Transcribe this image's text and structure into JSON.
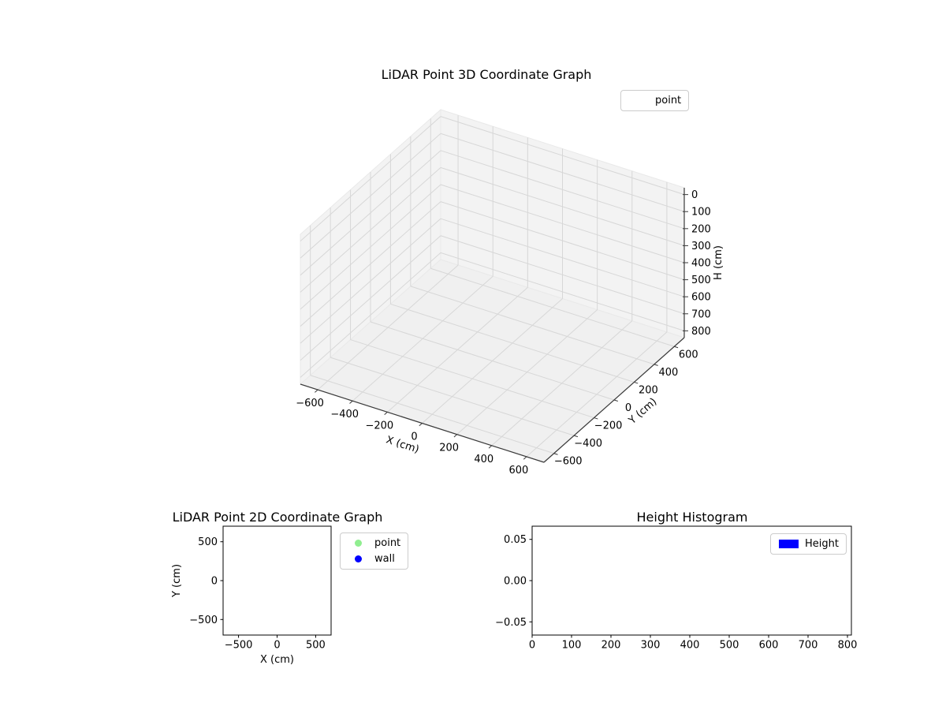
{
  "figure": {
    "background": "#ffffff",
    "text_color": "#000000",
    "grid_color": "#d7d7d7",
    "pane_color": "#f3f3f3"
  },
  "chart_data": [
    {
      "id": "plot3d",
      "type": "scatter3d",
      "title": "LiDAR Point 3D Coordinate Graph",
      "xlabel": "X (cm)",
      "ylabel": "Y (cm)",
      "zlabel": "H (cm)",
      "xlim": [
        -700,
        700
      ],
      "ylim": [
        -700,
        700
      ],
      "zlim": [
        -40,
        840
      ],
      "z_axis_inverted": true,
      "grid": true,
      "xticks": [
        -600,
        -400,
        -200,
        0,
        200,
        400,
        600
      ],
      "xtick_labels": [
        "−600",
        "−400",
        "−200",
        "0",
        "200",
        "400",
        "600"
      ],
      "yticks": [
        -600,
        -400,
        -200,
        0,
        200,
        400,
        600
      ],
      "ytick_labels": [
        "−600",
        "−400",
        "−200",
        "0",
        "200",
        "400",
        "600"
      ],
      "zticks": [
        0,
        100,
        200,
        300,
        400,
        500,
        600,
        700,
        800
      ],
      "ztick_labels": [
        "0",
        "100",
        "200",
        "300",
        "400",
        "500",
        "600",
        "700",
        "800"
      ],
      "legend": {
        "position": "upper-right",
        "entries": [
          {
            "label": "point",
            "marker": "none",
            "color": ""
          }
        ]
      },
      "series": [
        {
          "name": "point",
          "points": []
        }
      ]
    },
    {
      "id": "plot2d",
      "type": "scatter",
      "title": "LiDAR Point 2D Coordinate Graph",
      "xlabel": "X (cm)",
      "ylabel": "Y (cm)",
      "xlim": [
        -700,
        700
      ],
      "ylim": [
        -700,
        700
      ],
      "grid": false,
      "xticks": [
        -500,
        0,
        500
      ],
      "xtick_labels": [
        "−500",
        "0",
        "500"
      ],
      "yticks": [
        -500,
        0,
        500
      ],
      "ytick_labels": [
        "−500",
        "0",
        "500"
      ],
      "legend": {
        "position": "outside-right",
        "entries": [
          {
            "label": "point",
            "marker": "circle",
            "color": "#90ee90"
          },
          {
            "label": "wall",
            "marker": "circle",
            "color": "#0000ff"
          }
        ]
      },
      "series": [
        {
          "name": "point",
          "points": []
        },
        {
          "name": "wall",
          "points": []
        }
      ]
    },
    {
      "id": "histogram",
      "type": "bar",
      "title": "Height Histogram",
      "xlabel": "",
      "ylabel": "",
      "xlim": [
        0,
        810
      ],
      "ylim": [
        -0.066,
        0.066
      ],
      "grid": false,
      "xticks": [
        0,
        100,
        200,
        300,
        400,
        500,
        600,
        700,
        800
      ],
      "xtick_labels": [
        "0",
        "100",
        "200",
        "300",
        "400",
        "500",
        "600",
        "700",
        "800"
      ],
      "yticks": [
        -0.05,
        0.0,
        0.05
      ],
      "ytick_labels": [
        "−0.05",
        "0.00",
        "0.05"
      ],
      "legend": {
        "position": "upper-right-inside",
        "entries": [
          {
            "label": "Height",
            "marker": "rect",
            "color": "#0000ff"
          }
        ]
      },
      "values": []
    }
  ]
}
